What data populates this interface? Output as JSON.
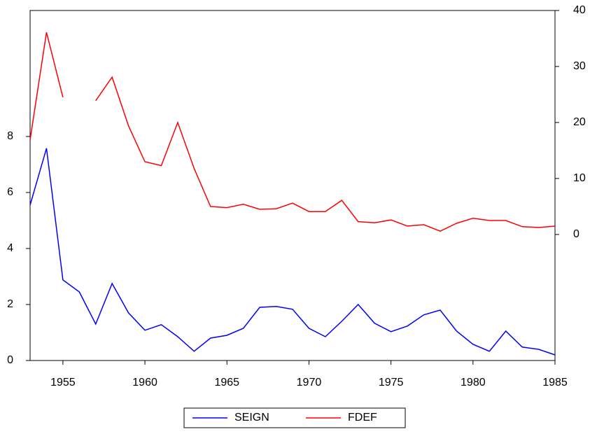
{
  "chart_data": {
    "type": "line",
    "x": [
      1953,
      1954,
      1955,
      1956,
      1957,
      1958,
      1959,
      1960,
      1961,
      1962,
      1963,
      1964,
      1965,
      1966,
      1967,
      1968,
      1969,
      1970,
      1971,
      1972,
      1973,
      1974,
      1975,
      1976,
      1977,
      1978,
      1979,
      1980,
      1981,
      1982,
      1983,
      1984,
      1985
    ],
    "xlim": [
      1953,
      1985
    ],
    "xticks": [
      1955,
      1960,
      1965,
      1970,
      1975,
      1980,
      1985
    ],
    "ylim": [
      0,
      12.5
    ],
    "yticks": [
      0,
      2,
      4,
      6,
      8
    ],
    "y2lim": [
      -22.5,
      40
    ],
    "y2ticks": [
      0,
      10,
      20,
      30,
      40
    ],
    "legend": "bottom",
    "series": [
      {
        "name": "SEIGN",
        "color": "#0000ff",
        "values": [
          5.55,
          7.58,
          2.88,
          2.45,
          1.3,
          2.75,
          1.7,
          1.08,
          1.28,
          0.85,
          0.33,
          0.8,
          0.9,
          1.15,
          1.9,
          1.93,
          1.83,
          1.15,
          0.85,
          1.4,
          2.0,
          1.33,
          1.03,
          1.23,
          1.63,
          1.8,
          1.05,
          0.58,
          0.33,
          1.05,
          0.48,
          0.4,
          0.2
        ]
      },
      {
        "name": "FDEF",
        "color": "#ff0000",
        "axis": "y2",
        "values": [
          16.9,
          36.1,
          24.5,
          null,
          23.9,
          28.1,
          19.4,
          13,
          12.3,
          20,
          11.8,
          5,
          4.8,
          5.4,
          4.5,
          4.6,
          5.6,
          4.1,
          4.1,
          6.1,
          2.3,
          2.1,
          2.6,
          1.5,
          1.75,
          0.6,
          2,
          2.9,
          2.5,
          2.5,
          1.4,
          1.25,
          1.5
        ]
      }
    ]
  }
}
